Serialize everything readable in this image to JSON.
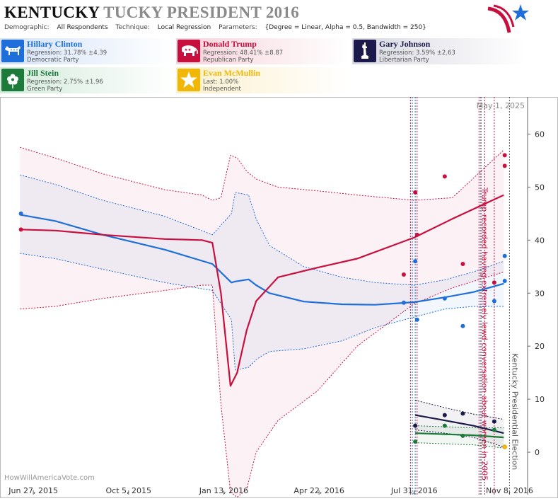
{
  "header": {
    "title_state": "KENTUCKY",
    "title_rest": "TUCKY PRESIDENT 2016",
    "demographic_label": "Demographic:",
    "demographic_value": "All Respondents",
    "technique_label": "Technique:",
    "technique_value": "Local Regression",
    "parameters_label": "Parameters:",
    "parameters_value": "{Degree = Linear, Alpha = 0.5, Bandwidth = 250}"
  },
  "candidates": [
    {
      "name": "Hillary Clinton",
      "line1": "Regression: 31.78% ±4.39",
      "line2": "Democratic Party",
      "color": "#1e6fd9",
      "icon": "donkey-icon"
    },
    {
      "name": "Donald Trump",
      "line1": "Regression: 48.41% ±8.87",
      "line2": "Republican Party",
      "color": "#c8103e",
      "icon": "elephant-icon"
    },
    {
      "name": "Gary Johnson",
      "line1": "Regression: 3.59% ±2.63",
      "line2": "Libertarian Party",
      "color": "#1b1a4a",
      "icon": "statue-of-liberty-icon"
    },
    {
      "name": "Jill Stein",
      "line1": "Regression: 2.75% ±1.96",
      "line2": "Green Party",
      "color": "#1c7a3a",
      "icon": "flower-icon"
    },
    {
      "name": "Evan McMullin",
      "line1": "Last: 1.00%",
      "line2": "Independent",
      "color": "#f2b705",
      "icon": "star-icon"
    }
  ],
  "chart_data": {
    "type": "line",
    "date_label": "May 1, 2025",
    "watermark": "HowWillAmericaVote.com",
    "x_ticks": [
      "2015-06-27",
      "2015-10-05",
      "2016-01-13",
      "2016-04-22",
      "2016-07-31",
      "2016-11-08"
    ],
    "x_tick_labels": [
      "Jun 27, 2015",
      "Oct 5, 2015",
      "Jan 13, 2016",
      "Apr 22, 2016",
      "Jul 31, 2016",
      "Nov 8, 2016"
    ],
    "y_ticks": [
      0,
      10,
      20,
      30,
      40,
      50,
      60
    ],
    "xlim": [
      "2015-05-23",
      "2016-11-27"
    ],
    "ylim": [
      -8,
      67
    ],
    "grid": false,
    "events": [
      {
        "date": "2016-07-27",
        "color": "#c8103e",
        "label": ""
      },
      {
        "date": "2016-07-29",
        "color": "#1e6fd9",
        "label": ""
      },
      {
        "date": "2016-08-01",
        "color": "#1e6fd9",
        "label": ""
      },
      {
        "date": "2016-08-03",
        "color": "#c8103e",
        "label": ""
      },
      {
        "date": "2016-10-07",
        "color": "#c8103e",
        "label": "Trump recorded having extremely lewd conversation about women in 2005"
      },
      {
        "date": "2016-10-09",
        "color": "#1b1a4a",
        "label": ""
      },
      {
        "date": "2016-10-13",
        "color": "#c8103e",
        "label": ""
      },
      {
        "date": "2016-10-23",
        "color": "#c8103e",
        "label": ""
      },
      {
        "date": "2016-11-08",
        "color": "#555555",
        "label": "Kentucky Presidential Election"
      }
    ],
    "series": [
      {
        "name": "Hillary Clinton",
        "color": "#1e6fd9",
        "x": [
          "2015-06-13",
          "2015-07-20",
          "2015-09-08",
          "2015-11-12",
          "2016-01-01",
          "2016-01-21",
          "2016-01-25",
          "2016-02-08",
          "2016-02-16",
          "2016-03-01",
          "2016-04-06",
          "2016-05-16",
          "2016-06-20",
          "2016-07-31",
          "2016-09-01",
          "2016-10-01",
          "2016-11-02"
        ],
        "y": [
          44.8,
          43.6,
          41.0,
          38.2,
          35.5,
          32.0,
          32.2,
          32.6,
          31.5,
          30.0,
          28.4,
          27.9,
          27.8,
          28.3,
          29.2,
          30.2,
          31.8
        ],
        "upper": [
          52.3,
          50.5,
          47.5,
          44.5,
          41.0,
          45.0,
          49.0,
          48.5,
          44.0,
          39.0,
          35.0,
          33.0,
          32.0,
          31.5,
          32.5,
          34.0,
          36.0
        ],
        "lower": [
          37.5,
          36.5,
          34.5,
          32.0,
          30.5,
          25.0,
          15.5,
          16.0,
          17.5,
          19.0,
          19.5,
          21.0,
          23.5,
          25.5,
          27.0,
          27.5,
          27.5
        ],
        "points": [
          {
            "x": "2015-06-14",
            "y": 45
          },
          {
            "x": "2016-07-20",
            "y": 28.2
          },
          {
            "x": "2016-08-01",
            "y": 36
          },
          {
            "x": "2016-08-03",
            "y": 25
          },
          {
            "x": "2016-09-01",
            "y": 29
          },
          {
            "x": "2016-09-20",
            "y": 23.8
          },
          {
            "x": "2016-10-23",
            "y": 28.5
          },
          {
            "x": "2016-11-03",
            "y": 32.3
          },
          {
            "x": "2016-11-03",
            "y": 37
          }
        ]
      },
      {
        "name": "Donald Trump",
        "color": "#c8103e",
        "x": [
          "2015-06-13",
          "2015-07-20",
          "2015-09-08",
          "2015-11-12",
          "2015-12-21",
          "2016-01-01",
          "2016-01-10",
          "2016-01-20",
          "2016-01-27",
          "2016-02-06",
          "2016-02-16",
          "2016-03-10",
          "2016-04-20",
          "2016-06-01",
          "2016-07-31",
          "2016-09-09",
          "2016-11-02"
        ],
        "y": [
          42.0,
          41.8,
          41.0,
          40.2,
          40.0,
          39.5,
          30.0,
          12.5,
          15.0,
          23.0,
          28.5,
          33.0,
          34.8,
          36.5,
          40.5,
          44.0,
          48.5
        ],
        "upper": [
          57.5,
          55.5,
          52.5,
          49.5,
          48.5,
          47.5,
          48.0,
          56.0,
          55.5,
          53.0,
          51.5,
          50.0,
          49.3,
          48.5,
          47.5,
          48.0,
          57.0
        ],
        "lower": [
          27.0,
          27.5,
          29.0,
          30.5,
          31.5,
          31.5,
          9.0,
          -7.5,
          -8.5,
          -7.0,
          0.0,
          6.0,
          11.5,
          20.0,
          28.0,
          31.0,
          34.0
        ],
        "points": [
          {
            "x": "2015-06-14",
            "y": 42
          },
          {
            "x": "2016-07-20",
            "y": 33.5
          },
          {
            "x": "2016-08-01",
            "y": 49
          },
          {
            "x": "2016-08-03",
            "y": 41
          },
          {
            "x": "2016-09-01",
            "y": 52
          },
          {
            "x": "2016-09-20",
            "y": 35.5
          },
          {
            "x": "2016-10-23",
            "y": 32
          },
          {
            "x": "2016-11-03",
            "y": 56
          },
          {
            "x": "2016-11-03",
            "y": 54
          }
        ]
      },
      {
        "name": "Gary Johnson",
        "color": "#1b1a4a",
        "x": [
          "2016-08-01",
          "2016-09-01",
          "2016-10-01",
          "2016-11-02"
        ],
        "y": [
          7.0,
          6.0,
          5.0,
          3.6
        ],
        "upper": [
          9.8,
          8.4,
          7.2,
          6.2
        ],
        "lower": [
          4.2,
          3.6,
          2.8,
          1.0
        ],
        "points": [
          {
            "x": "2016-08-01",
            "y": 5
          },
          {
            "x": "2016-09-01",
            "y": 7
          },
          {
            "x": "2016-09-20",
            "y": 7.3
          },
          {
            "x": "2016-10-23",
            "y": 5.8
          }
        ]
      },
      {
        "name": "Jill Stein",
        "color": "#1c7a3a",
        "x": [
          "2016-08-01",
          "2016-09-01",
          "2016-10-01",
          "2016-11-02"
        ],
        "y": [
          3.6,
          3.4,
          3.2,
          2.8
        ],
        "upper": [
          5.0,
          4.8,
          4.6,
          4.6
        ],
        "lower": [
          1.8,
          1.6,
          1.4,
          0.8
        ],
        "points": [
          {
            "x": "2016-08-01",
            "y": 2
          },
          {
            "x": "2016-09-01",
            "y": 5
          },
          {
            "x": "2016-09-20",
            "y": 3.1
          },
          {
            "x": "2016-10-23",
            "y": 4.2
          }
        ]
      },
      {
        "name": "Evan McMullin",
        "color": "#f2b705",
        "x": [],
        "y": [],
        "upper": [],
        "lower": [],
        "points": [
          {
            "x": "2016-11-03",
            "y": 1
          }
        ]
      }
    ]
  }
}
